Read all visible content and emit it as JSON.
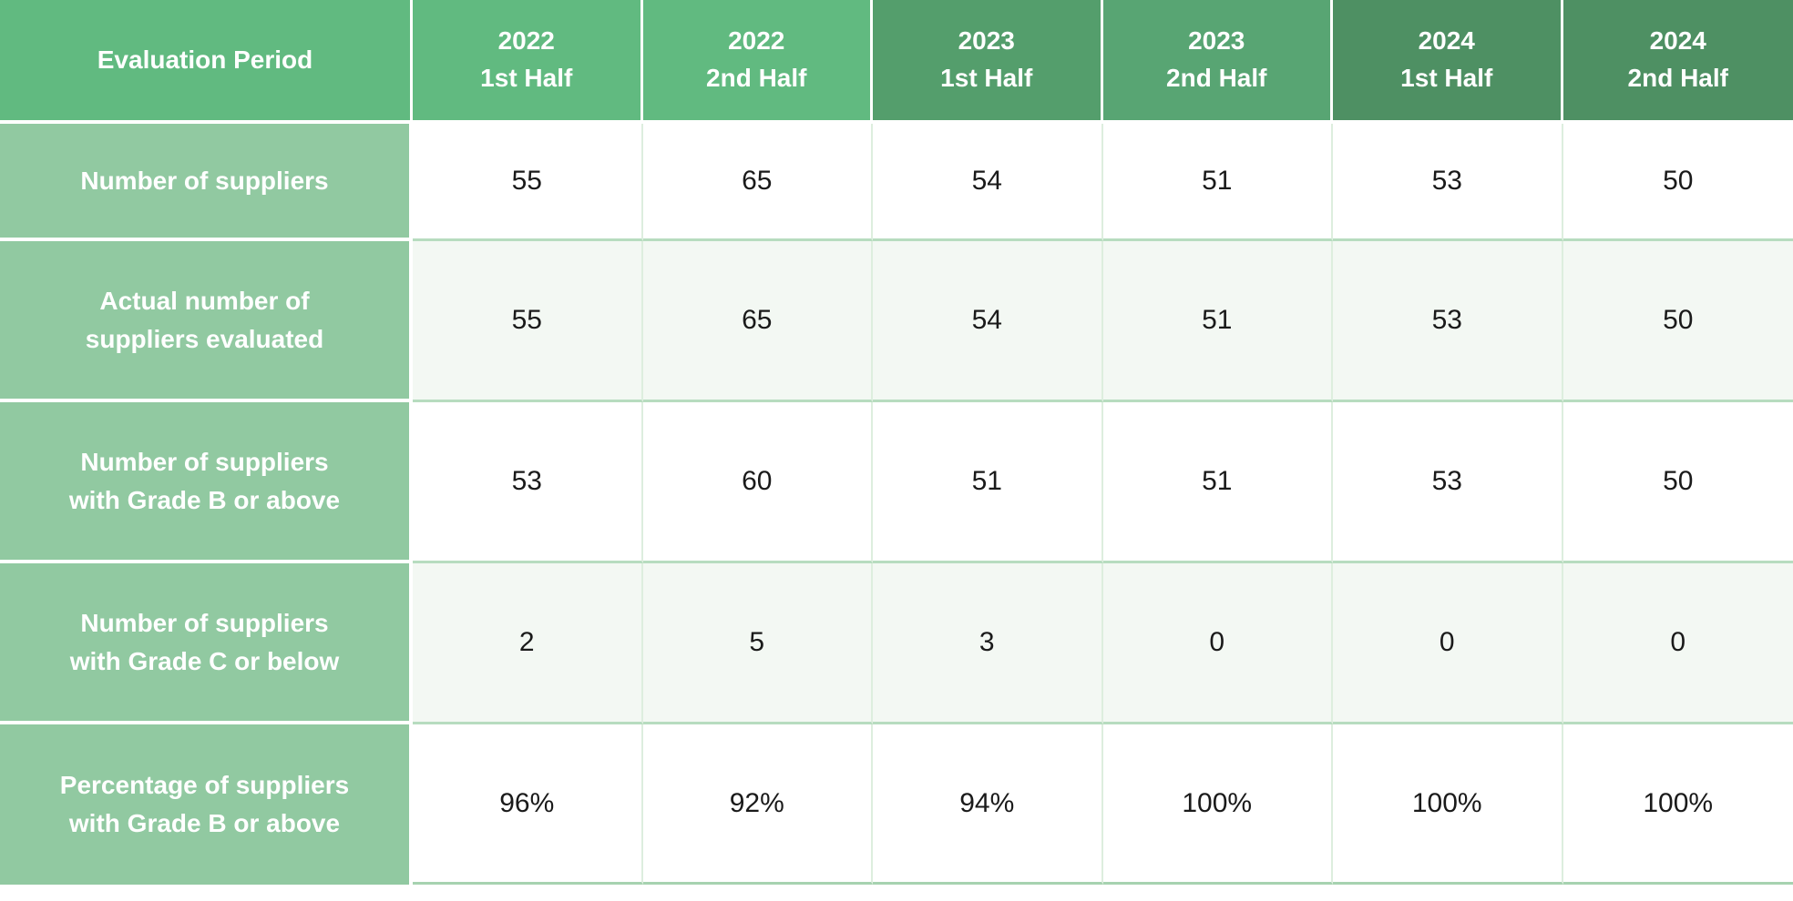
{
  "table": {
    "header": {
      "corner": "Evaluation Period",
      "columns": [
        {
          "year": "2022",
          "half": "1st Half"
        },
        {
          "year": "2022",
          "half": "2nd Half"
        },
        {
          "year": "2023",
          "half": "1st Half"
        },
        {
          "year": "2023",
          "half": "2nd Half"
        },
        {
          "year": "2024",
          "half": "1st Half"
        },
        {
          "year": "2024",
          "half": "2nd Half"
        }
      ]
    },
    "rows": [
      {
        "label_lines": [
          "Number of suppliers"
        ],
        "values": [
          "55",
          "65",
          "54",
          "51",
          "53",
          "50"
        ]
      },
      {
        "label_lines": [
          "Actual number of",
          "suppliers evaluated"
        ],
        "values": [
          "55",
          "65",
          "54",
          "51",
          "53",
          "50"
        ]
      },
      {
        "label_lines": [
          "Number of suppliers",
          "with Grade B or above"
        ],
        "values": [
          "53",
          "60",
          "51",
          "51",
          "53",
          "50"
        ]
      },
      {
        "label_lines": [
          "Number of suppliers",
          "with Grade C or below"
        ],
        "values": [
          "2",
          "5",
          "3",
          "0",
          "0",
          "0"
        ]
      },
      {
        "label_lines": [
          "Percentage of suppliers",
          "with Grade B or above"
        ],
        "values": [
          "96%",
          "92%",
          "94%",
          "100%",
          "100%",
          "100%"
        ]
      }
    ]
  },
  "colors": {
    "header_2022": "#61ba80",
    "header_2023_h1": "#549e6c",
    "header_2023_h2": "#58a573",
    "header_2024": "#4e9063",
    "row_label_bg": "#91c9a1",
    "row_tint_bg": "#f3f8f3",
    "grid_line_vertical": "#ddeede",
    "grid_line_horizontal": "#b7dcbf",
    "table_bottom_edge": "#a6d2b0",
    "header_text": "#ffffff",
    "value_text": "#1a1a1a"
  },
  "chart_data": {
    "type": "table",
    "columns": [
      "Evaluation Period",
      "2022 1st Half",
      "2022 2nd Half",
      "2023 1st Half",
      "2023 2nd Half",
      "2024 1st Half",
      "2024 2nd Half"
    ],
    "rows": [
      [
        "Number of suppliers",
        55,
        65,
        54,
        51,
        53,
        50
      ],
      [
        "Actual number of suppliers evaluated",
        55,
        65,
        54,
        51,
        53,
        50
      ],
      [
        "Number of suppliers with Grade B or above",
        53,
        60,
        51,
        51,
        53,
        50
      ],
      [
        "Number of suppliers with Grade C or below",
        2,
        5,
        3,
        0,
        0,
        0
      ],
      [
        "Percentage of suppliers with Grade B or above",
        "96%",
        "92%",
        "94%",
        "100%",
        "100%",
        "100%"
      ]
    ]
  }
}
